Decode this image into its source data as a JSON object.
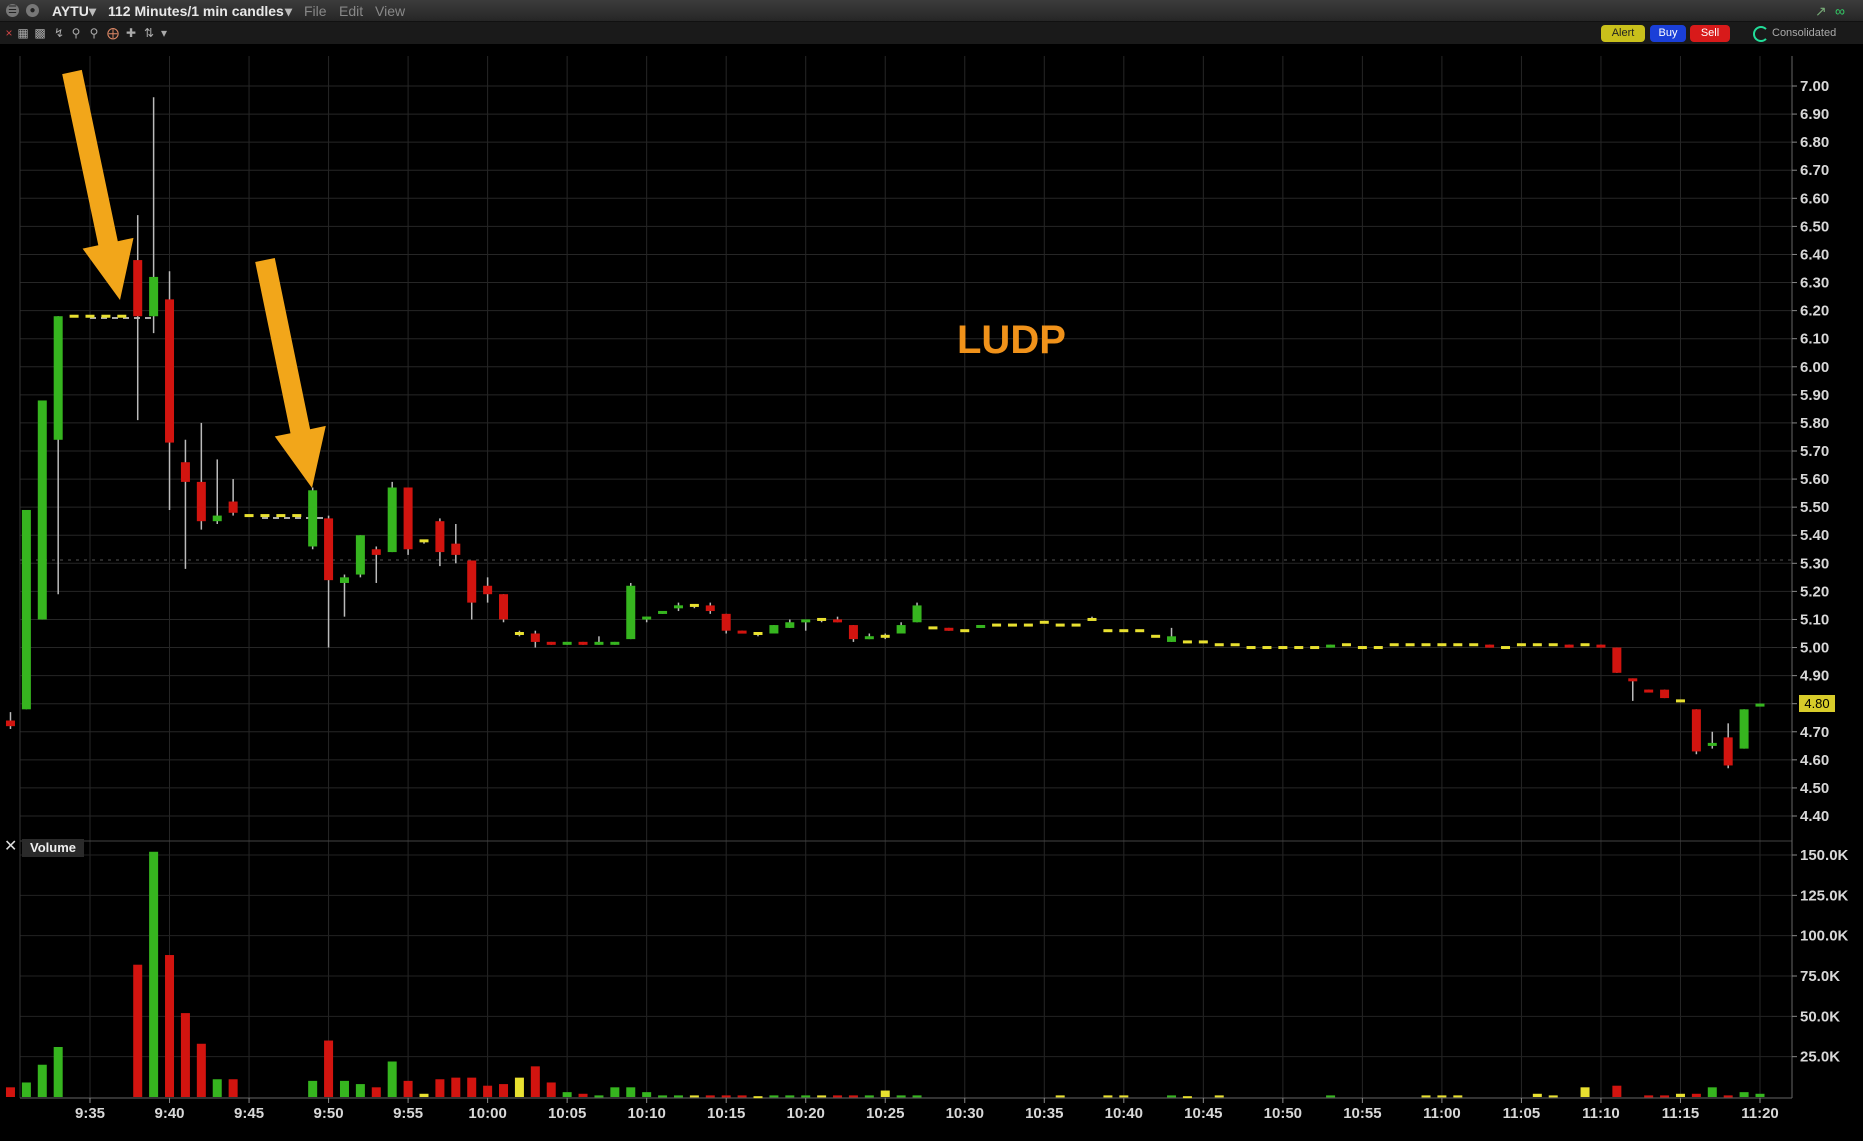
{
  "window": {
    "symbol": "AYTU",
    "timeframe": "112 Minutes/1 min candles",
    "menu": [
      "File",
      "Edit",
      "View"
    ],
    "buttons": {
      "alert": "Alert",
      "buy": "Buy",
      "sell": "Sell",
      "consolidated": "Consolidated"
    }
  },
  "annotation": {
    "text": "LUDP",
    "color": "#f0921a"
  },
  "current_price_label": "4.80",
  "volume_label": "Volume",
  "colors": {
    "up": "#36b51f",
    "down": "#d2140f",
    "neutral": "#e8e030",
    "arrow": "#f2a61a",
    "price_tag": "#d8cc2a"
  },
  "chart_data": [
    {
      "type": "candlestick",
      "title": "",
      "x_tick_labels": [
        "9:35",
        "9:40",
        "9:45",
        "9:50",
        "9:55",
        "10:00",
        "10:05",
        "10:10",
        "10:15",
        "10:20",
        "10:25",
        "10:30",
        "10:35",
        "10:40",
        "10:45",
        "10:50",
        "10:55",
        "11:00",
        "11:05",
        "11:10",
        "11:15",
        "11:20"
      ],
      "y_ticks": [
        "7.00",
        "6.90",
        "6.80",
        "6.70",
        "6.60",
        "6.50",
        "6.40",
        "6.30",
        "6.20",
        "6.10",
        "6.00",
        "5.90",
        "5.80",
        "5.70",
        "5.60",
        "5.50",
        "5.40",
        "5.30",
        "5.20",
        "5.10",
        "5.00",
        "4.90",
        "4.80",
        "4.70",
        "4.60",
        "4.50",
        "4.40"
      ],
      "ylim": [
        4.37,
        7.06
      ],
      "grid": true,
      "last_price": 4.8,
      "candles": [
        {
          "t": "9:29",
          "o": 4.73,
          "h": 4.88,
          "l": 4.73,
          "c": 4.77
        },
        {
          "t": "9:30",
          "o": 4.74,
          "h": 4.77,
          "l": 4.71,
          "c": 4.72
        },
        {
          "t": "9:31",
          "o": 4.78,
          "h": 5.49,
          "l": 4.78,
          "c": 5.49
        },
        {
          "t": "9:32",
          "o": 5.1,
          "h": 5.88,
          "l": 5.1,
          "c": 5.88
        },
        {
          "t": "9:33",
          "o": 5.74,
          "h": 6.18,
          "l": 5.19,
          "c": 6.18
        },
        {
          "t": "9:34",
          "o": 6.18,
          "h": 6.18,
          "l": 6.18,
          "c": 6.18
        },
        {
          "t": "9:35",
          "o": 6.18,
          "h": 6.18,
          "l": 6.18,
          "c": 6.18
        },
        {
          "t": "9:36",
          "o": 6.18,
          "h": 6.18,
          "l": 6.18,
          "c": 6.18
        },
        {
          "t": "9:37",
          "o": 6.18,
          "h": 6.18,
          "l": 6.18,
          "c": 6.18
        },
        {
          "t": "9:38",
          "o": 6.38,
          "h": 6.54,
          "l": 5.81,
          "c": 6.18
        },
        {
          "t": "9:39",
          "o": 6.18,
          "h": 6.96,
          "l": 6.12,
          "c": 6.32
        },
        {
          "t": "9:40",
          "o": 6.24,
          "h": 6.34,
          "l": 5.49,
          "c": 5.73
        },
        {
          "t": "9:41",
          "o": 5.66,
          "h": 5.74,
          "l": 5.28,
          "c": 5.59
        },
        {
          "t": "9:42",
          "o": 5.59,
          "h": 5.8,
          "l": 5.42,
          "c": 5.45
        },
        {
          "t": "9:43",
          "o": 5.45,
          "h": 5.67,
          "l": 5.44,
          "c": 5.47
        },
        {
          "t": "9:44",
          "o": 5.52,
          "h": 5.6,
          "l": 5.47,
          "c": 5.48
        },
        {
          "t": "9:45",
          "o": 5.47,
          "h": 5.47,
          "l": 5.47,
          "c": 5.47
        },
        {
          "t": "9:46",
          "o": 5.47,
          "h": 5.47,
          "l": 5.47,
          "c": 5.47
        },
        {
          "t": "9:47",
          "o": 5.47,
          "h": 5.47,
          "l": 5.47,
          "c": 5.47
        },
        {
          "t": "9:48",
          "o": 5.47,
          "h": 5.47,
          "l": 5.47,
          "c": 5.47
        },
        {
          "t": "9:49",
          "o": 5.36,
          "h": 5.57,
          "l": 5.35,
          "c": 5.56
        },
        {
          "t": "9:50",
          "o": 5.46,
          "h": 5.47,
          "l": 5.0,
          "c": 5.24
        },
        {
          "t": "9:51",
          "o": 5.23,
          "h": 5.26,
          "l": 5.11,
          "c": 5.25
        },
        {
          "t": "9:52",
          "o": 5.26,
          "h": 5.4,
          "l": 5.25,
          "c": 5.4
        },
        {
          "t": "9:53",
          "o": 5.35,
          "h": 5.36,
          "l": 5.23,
          "c": 5.33
        },
        {
          "t": "9:54",
          "o": 5.34,
          "h": 5.59,
          "l": 5.34,
          "c": 5.57
        },
        {
          "t": "9:55",
          "o": 5.57,
          "h": 5.57,
          "l": 5.33,
          "c": 5.35
        },
        {
          "t": "9:56",
          "o": 5.38,
          "h": 5.38,
          "l": 5.37,
          "c": 5.38
        },
        {
          "t": "9:57",
          "o": 5.45,
          "h": 5.46,
          "l": 5.29,
          "c": 5.34
        },
        {
          "t": "9:58",
          "o": 5.37,
          "h": 5.44,
          "l": 5.3,
          "c": 5.33
        },
        {
          "t": "9:59",
          "o": 5.31,
          "h": 5.31,
          "l": 5.1,
          "c": 5.16
        },
        {
          "t": "10:00",
          "o": 5.22,
          "h": 5.25,
          "l": 5.16,
          "c": 5.19
        },
        {
          "t": "10:01",
          "o": 5.19,
          "h": 5.19,
          "l": 5.09,
          "c": 5.1
        },
        {
          "t": "10:02",
          "o": 5.05,
          "h": 5.06,
          "l": 5.04,
          "c": 5.05
        },
        {
          "t": "10:03",
          "o": 5.05,
          "h": 5.06,
          "l": 5.0,
          "c": 5.02
        },
        {
          "t": "10:04",
          "o": 5.02,
          "h": 5.02,
          "l": 5.01,
          "c": 5.01
        },
        {
          "t": "10:05",
          "o": 5.01,
          "h": 5.02,
          "l": 5.01,
          "c": 5.02
        },
        {
          "t": "10:06",
          "o": 5.02,
          "h": 5.02,
          "l": 5.01,
          "c": 5.01
        },
        {
          "t": "10:07",
          "o": 5.01,
          "h": 5.04,
          "l": 5.01,
          "c": 5.02
        },
        {
          "t": "10:08",
          "o": 5.01,
          "h": 5.02,
          "l": 5.01,
          "c": 5.02
        },
        {
          "t": "10:09",
          "o": 5.03,
          "h": 5.23,
          "l": 5.03,
          "c": 5.22
        },
        {
          "t": "10:10",
          "o": 5.1,
          "h": 5.11,
          "l": 5.09,
          "c": 5.11
        },
        {
          "t": "10:11",
          "o": 5.12,
          "h": 5.13,
          "l": 5.12,
          "c": 5.13
        },
        {
          "t": "10:12",
          "o": 5.14,
          "h": 5.16,
          "l": 5.13,
          "c": 5.15
        },
        {
          "t": "10:13",
          "o": 5.15,
          "h": 5.15,
          "l": 5.14,
          "c": 5.15
        },
        {
          "t": "10:14",
          "o": 5.15,
          "h": 5.16,
          "l": 5.12,
          "c": 5.13
        },
        {
          "t": "10:15",
          "o": 5.12,
          "h": 5.12,
          "l": 5.05,
          "c": 5.06
        },
        {
          "t": "10:16",
          "o": 5.06,
          "h": 5.06,
          "l": 5.05,
          "c": 5.05
        },
        {
          "t": "10:17",
          "o": 5.05,
          "h": 5.05,
          "l": 5.04,
          "c": 5.05
        },
        {
          "t": "10:18",
          "o": 5.05,
          "h": 5.08,
          "l": 5.05,
          "c": 5.08
        },
        {
          "t": "10:19",
          "o": 5.07,
          "h": 5.1,
          "l": 5.07,
          "c": 5.09
        },
        {
          "t": "10:20",
          "o": 5.09,
          "h": 5.1,
          "l": 5.06,
          "c": 5.1
        },
        {
          "t": "10:21",
          "o": 5.1,
          "h": 5.1,
          "l": 5.09,
          "c": 5.1
        },
        {
          "t": "10:22",
          "o": 5.1,
          "h": 5.11,
          "l": 5.09,
          "c": 5.09
        },
        {
          "t": "10:23",
          "o": 5.08,
          "h": 5.08,
          "l": 5.02,
          "c": 5.03
        },
        {
          "t": "10:24",
          "o": 5.03,
          "h": 5.05,
          "l": 5.03,
          "c": 5.04
        },
        {
          "t": "10:25",
          "o": 5.04,
          "h": 5.05,
          "l": 5.03,
          "c": 5.04
        },
        {
          "t": "10:26",
          "o": 5.05,
          "h": 5.09,
          "l": 5.05,
          "c": 5.08
        },
        {
          "t": "10:27",
          "o": 5.09,
          "h": 5.16,
          "l": 5.09,
          "c": 5.15
        },
        {
          "t": "10:28",
          "o": 5.07,
          "h": 5.07,
          "l": 5.07,
          "c": 5.07
        },
        {
          "t": "10:29",
          "o": 5.07,
          "h": 5.07,
          "l": 5.06,
          "c": 5.06
        },
        {
          "t": "10:30",
          "o": 5.06,
          "h": 5.06,
          "l": 5.06,
          "c": 5.06
        },
        {
          "t": "10:31",
          "o": 5.07,
          "h": 5.08,
          "l": 5.07,
          "c": 5.08
        },
        {
          "t": "10:32",
          "o": 5.08,
          "h": 5.08,
          "l": 5.08,
          "c": 5.08
        },
        {
          "t": "10:33",
          "o": 5.08,
          "h": 5.08,
          "l": 5.08,
          "c": 5.08
        },
        {
          "t": "10:34",
          "o": 5.08,
          "h": 5.08,
          "l": 5.08,
          "c": 5.08
        },
        {
          "t": "10:35",
          "o": 5.09,
          "h": 5.09,
          "l": 5.09,
          "c": 5.09
        },
        {
          "t": "10:36",
          "o": 5.08,
          "h": 5.08,
          "l": 5.08,
          "c": 5.08
        },
        {
          "t": "10:37",
          "o": 5.08,
          "h": 5.08,
          "l": 5.08,
          "c": 5.08
        },
        {
          "t": "10:38",
          "o": 5.1,
          "h": 5.11,
          "l": 5.1,
          "c": 5.1
        },
        {
          "t": "10:39",
          "o": 5.06,
          "h": 5.06,
          "l": 5.06,
          "c": 5.06
        },
        {
          "t": "10:40",
          "o": 5.06,
          "h": 5.06,
          "l": 5.06,
          "c": 5.06
        },
        {
          "t": "10:41",
          "o": 5.06,
          "h": 5.06,
          "l": 5.06,
          "c": 5.06
        },
        {
          "t": "10:42",
          "o": 5.04,
          "h": 5.04,
          "l": 5.04,
          "c": 5.04
        },
        {
          "t": "10:43",
          "o": 5.02,
          "h": 5.07,
          "l": 5.02,
          "c": 5.04
        },
        {
          "t": "10:44",
          "o": 5.02,
          "h": 5.02,
          "l": 5.02,
          "c": 5.02
        },
        {
          "t": "10:45",
          "o": 5.02,
          "h": 5.02,
          "l": 5.02,
          "c": 5.02
        },
        {
          "t": "10:46",
          "o": 5.01,
          "h": 5.01,
          "l": 5.01,
          "c": 5.01
        },
        {
          "t": "10:47",
          "o": 5.01,
          "h": 5.01,
          "l": 5.01,
          "c": 5.01
        },
        {
          "t": "10:48",
          "o": 5.0,
          "h": 5.0,
          "l": 5.0,
          "c": 5.0
        },
        {
          "t": "10:49",
          "o": 5.0,
          "h": 5.0,
          "l": 5.0,
          "c": 5.0
        },
        {
          "t": "10:50",
          "o": 5.0,
          "h": 5.0,
          "l": 5.0,
          "c": 5.0
        },
        {
          "t": "10:51",
          "o": 5.0,
          "h": 5.0,
          "l": 5.0,
          "c": 5.0
        },
        {
          "t": "10:52",
          "o": 5.0,
          "h": 5.0,
          "l": 5.0,
          "c": 5.0
        },
        {
          "t": "10:53",
          "o": 5.0,
          "h": 5.01,
          "l": 5.0,
          "c": 5.01
        },
        {
          "t": "10:54",
          "o": 5.01,
          "h": 5.01,
          "l": 5.01,
          "c": 5.01
        },
        {
          "t": "10:55",
          "o": 5.0,
          "h": 5.0,
          "l": 5.0,
          "c": 5.0
        },
        {
          "t": "10:56",
          "o": 5.0,
          "h": 5.0,
          "l": 5.0,
          "c": 5.0
        },
        {
          "t": "10:57",
          "o": 5.01,
          "h": 5.01,
          "l": 5.01,
          "c": 5.01
        },
        {
          "t": "10:58",
          "o": 5.01,
          "h": 5.01,
          "l": 5.01,
          "c": 5.01
        },
        {
          "t": "10:59",
          "o": 5.01,
          "h": 5.01,
          "l": 5.01,
          "c": 5.01
        },
        {
          "t": "11:00",
          "o": 5.01,
          "h": 5.01,
          "l": 5.01,
          "c": 5.01
        },
        {
          "t": "11:01",
          "o": 5.01,
          "h": 5.01,
          "l": 5.01,
          "c": 5.01
        },
        {
          "t": "11:02",
          "o": 5.01,
          "h": 5.01,
          "l": 5.01,
          "c": 5.01
        },
        {
          "t": "11:03",
          "o": 5.01,
          "h": 5.01,
          "l": 5.0,
          "c": 5.0
        },
        {
          "t": "11:04",
          "o": 5.0,
          "h": 5.0,
          "l": 5.0,
          "c": 5.0
        },
        {
          "t": "11:05",
          "o": 5.01,
          "h": 5.01,
          "l": 5.01,
          "c": 5.01
        },
        {
          "t": "11:06",
          "o": 5.01,
          "h": 5.01,
          "l": 5.01,
          "c": 5.01
        },
        {
          "t": "11:07",
          "o": 5.01,
          "h": 5.01,
          "l": 5.01,
          "c": 5.01
        },
        {
          "t": "11:08",
          "o": 5.01,
          "h": 5.01,
          "l": 5.0,
          "c": 5.0
        },
        {
          "t": "11:09",
          "o": 5.01,
          "h": 5.01,
          "l": 5.01,
          "c": 5.01
        },
        {
          "t": "11:10",
          "o": 5.01,
          "h": 5.01,
          "l": 5.0,
          "c": 5.0
        },
        {
          "t": "11:11",
          "o": 5.0,
          "h": 5.0,
          "l": 4.91,
          "c": 4.91
        },
        {
          "t": "11:12",
          "o": 4.89,
          "h": 4.89,
          "l": 4.81,
          "c": 4.88
        },
        {
          "t": "11:13",
          "o": 4.85,
          "h": 4.85,
          "l": 4.84,
          "c": 4.84
        },
        {
          "t": "11:14",
          "o": 4.85,
          "h": 4.85,
          "l": 4.82,
          "c": 4.82
        },
        {
          "t": "11:15",
          "o": 4.81,
          "h": 4.81,
          "l": 4.81,
          "c": 4.81
        },
        {
          "t": "11:16",
          "o": 4.78,
          "h": 4.78,
          "l": 4.62,
          "c": 4.63
        },
        {
          "t": "11:17",
          "o": 4.65,
          "h": 4.7,
          "l": 4.64,
          "c": 4.66
        },
        {
          "t": "11:18",
          "o": 4.68,
          "h": 4.73,
          "l": 4.57,
          "c": 4.58
        },
        {
          "t": "11:19",
          "o": 4.64,
          "h": 4.78,
          "l": 4.64,
          "c": 4.78
        },
        {
          "t": "11:20",
          "o": 4.79,
          "h": 4.8,
          "l": 4.79,
          "c": 4.8
        }
      ]
    },
    {
      "type": "bar",
      "title": "Volume",
      "y_ticks": [
        "25.0K",
        "50.0K",
        "75.0K",
        "100.0K",
        "125.0K",
        "150.0K"
      ],
      "ylim": [
        0,
        153000
      ],
      "volume": [
        15000,
        6000,
        9000,
        20000,
        31000,
        0,
        0,
        0,
        0,
        82000,
        152000,
        88000,
        52000,
        33000,
        11000,
        11000,
        0,
        0,
        0,
        0,
        10000,
        35000,
        10000,
        8000,
        6000,
        22000,
        10000,
        2000,
        11000,
        12000,
        12000,
        7000,
        8000,
        12000,
        19000,
        9000,
        3000,
        2000,
        1000,
        6000,
        6000,
        3000,
        1000,
        1000,
        1000,
        1000,
        1000,
        1000,
        500,
        1000,
        1000,
        1000,
        1000,
        1000,
        1000,
        1000,
        4000,
        1000,
        1000,
        0,
        0,
        0,
        0,
        0,
        0,
        0,
        0,
        1000,
        0,
        0,
        1000,
        1000,
        0,
        0,
        1000,
        500,
        0,
        1000,
        0,
        0,
        0,
        0,
        0,
        0,
        1000,
        0,
        0,
        0,
        0,
        0,
        1000,
        1000,
        1000,
        0,
        0,
        0,
        0,
        2000,
        1000,
        0,
        6000,
        0,
        7000,
        0,
        1000,
        1000,
        2000,
        2000,
        6000,
        1000,
        3000,
        2000
      ]
    }
  ]
}
